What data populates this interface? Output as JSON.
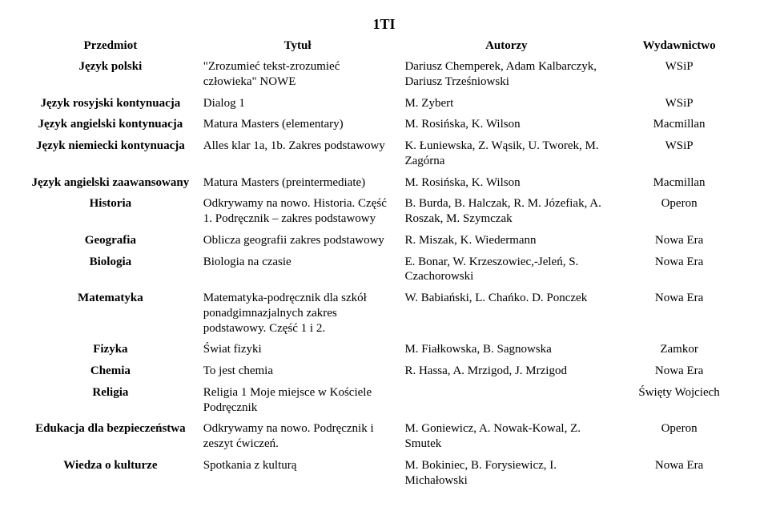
{
  "page_heading": "1TI",
  "columns": {
    "subject": "Przedmiot",
    "title": "Tytuł",
    "authors": "Autorzy",
    "publisher": "Wydawnictwo"
  },
  "rows": [
    {
      "subject": "Język polski",
      "title": "\"Zrozumieć tekst-zrozumieć człowieka\" NOWE",
      "authors": "Dariusz Chemperek, Adam Kalbarczyk, Dariusz Trześniowski",
      "publisher": "WSiP"
    },
    {
      "subject": "Język rosyjski kontynuacja",
      "title": "Dialog 1",
      "authors": "M. Zybert",
      "publisher": "WSiP"
    },
    {
      "subject": "Język angielski kontynuacja",
      "title": "Matura Masters (elementary)",
      "authors": "M. Rosińska, K. Wilson",
      "publisher": "Macmillan"
    },
    {
      "subject": "Język niemiecki kontynuacja",
      "title": "Alles klar 1a, 1b. Zakres podstawowy",
      "authors": "K. Łuniewska, Z. Wąsik, U. Tworek, M. Zagórna",
      "publisher": "WSiP"
    },
    {
      "subject": "Język angielski zaawansowany",
      "title": "Matura Masters (preintermediate)",
      "authors": "M. Rosińska, K. Wilson",
      "publisher": "Macmillan"
    },
    {
      "subject": "Historia",
      "title": "Odkrywamy na nowo. Historia. Część 1. Podręcznik – zakres podstawowy",
      "authors": "B. Burda, B. Halczak, R. M. Józefiak, A. Roszak, M. Szymczak",
      "publisher": "Operon"
    },
    {
      "subject": "Geografia",
      "title": "Oblicza geografii zakres podstawowy",
      "authors": "R. Miszak, K. Wiedermann",
      "publisher": "Nowa Era"
    },
    {
      "subject": "Biologia",
      "title": "Biologia na czasie",
      "authors": "E. Bonar, W. Krzeszowiec,-Jeleń, S. Czachorowski",
      "publisher": "Nowa Era"
    },
    {
      "subject": "Matematyka",
      "title": "Matematyka-podręcznik dla szkół ponadgimnazjalnych\nzakres podstawowy. Część 1 i 2.",
      "authors": "W. Babiański, L. Chańko. D. Ponczek",
      "publisher": "Nowa Era"
    },
    {
      "subject": "Fizyka",
      "title": "Świat fizyki",
      "authors": "M. Fiałkowska, B. Sagnowska",
      "publisher": "Zamkor"
    },
    {
      "subject": "Chemia",
      "title": "To jest chemia",
      "authors": "R. Hassa, A. Mrzigod, J. Mrzigod",
      "publisher": "Nowa Era"
    },
    {
      "subject": "Religia",
      "title": "Religia 1 Moje miejsce w Kościele Podręcznik",
      "authors": "",
      "publisher": "Święty Wojciech"
    },
    {
      "subject": "Edukacja dla bezpieczeństwa",
      "title": "Odkrywamy na nowo. Podręcznik i zeszyt ćwiczeń.",
      "authors": "M. Goniewicz, A. Nowak-Kowal, Z. Smutek",
      "publisher": "Operon"
    },
    {
      "subject": "Wiedza o kulturze",
      "title": "Spotkania z kulturą",
      "authors": "M. Bokiniec, B. Forysiewicz, I. Michałowski",
      "publisher": "Nowa Era"
    }
  ]
}
